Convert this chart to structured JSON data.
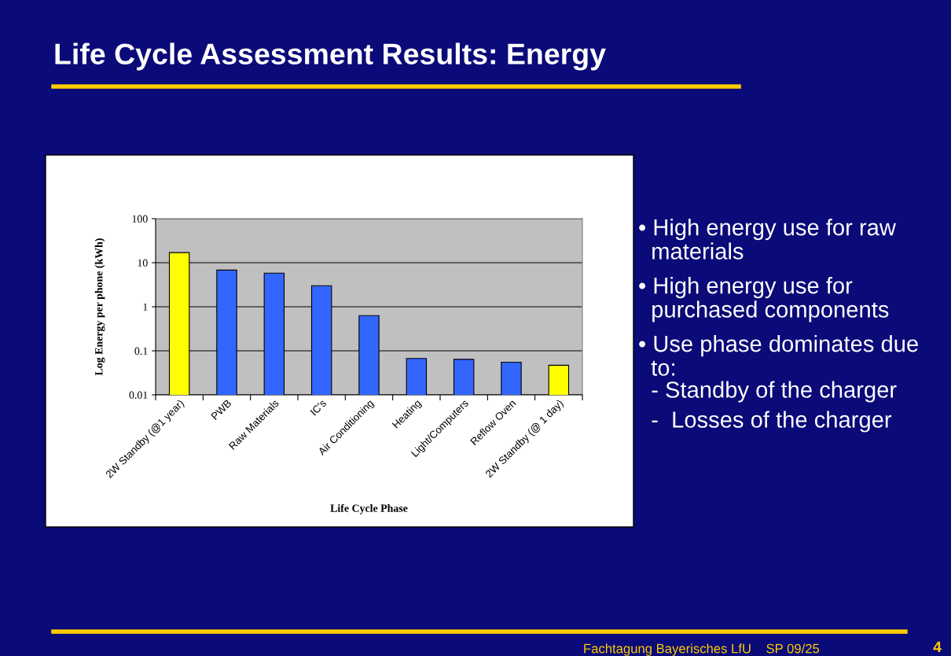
{
  "chart_data": {
    "type": "bar",
    "title": "Life Cycle Assessment Results: Energy",
    "xlabel": "Life Cycle Phase",
    "ylabel": "Log Energy per phone (kWh)",
    "categories": [
      "2W Standby (@1 year)",
      "PWB",
      "Raw Materials",
      "IC's",
      "Air Conditioning",
      "Heating",
      "Light/Computers",
      "Reflow Oven",
      "2W Standby (@ 1 day)"
    ],
    "values": [
      17,
      6.8,
      5.8,
      3.0,
      0.63,
      0.067,
      0.064,
      0.055,
      0.047
    ],
    "colors": [
      "#ffff00",
      "#3366ff",
      "#3366ff",
      "#3366ff",
      "#3366ff",
      "#3366ff",
      "#3366ff",
      "#3366ff",
      "#ffff00"
    ],
    "log": true,
    "ylim": [
      0.01,
      100
    ],
    "yticks": [
      0.01,
      0.1,
      1,
      10,
      100
    ],
    "grid": "y",
    "annotations": [
      "• High energy use for raw\n  materials",
      "• High energy use for\n  purchased components",
      "• Use phase dominates due\n  to:",
      "  - Standby of the charger",
      "  -  Losses of the charger",
      "Fachtagung Bayerisches LfU    SP 09/25",
      "4"
    ]
  }
}
